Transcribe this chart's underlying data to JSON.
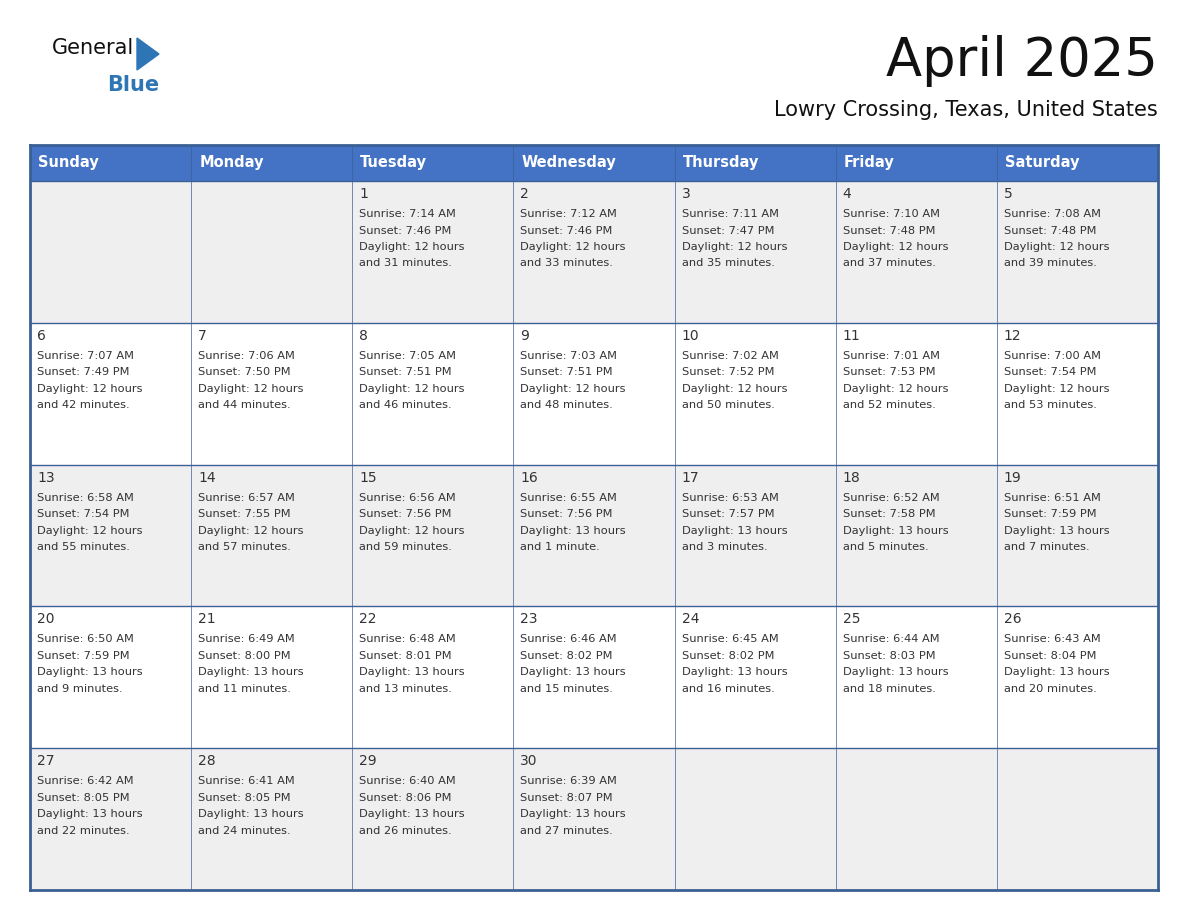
{
  "title": "April 2025",
  "subtitle": "Lowry Crossing, Texas, United States",
  "header_color": "#4472C4",
  "header_text_color": "#FFFFFF",
  "day_names": [
    "Sunday",
    "Monday",
    "Tuesday",
    "Wednesday",
    "Thursday",
    "Friday",
    "Saturday"
  ],
  "bg_color": "#FFFFFF",
  "cell_bg_even": "#EFEFEF",
  "cell_bg_odd": "#FFFFFF",
  "border_color": "#3A6094",
  "text_color": "#333333",
  "logo_black": "#111111",
  "logo_blue": "#2E75B6",
  "days": [
    {
      "day": 1,
      "col": 2,
      "row": 0,
      "sunrise": "7:14 AM",
      "sunset": "7:46 PM",
      "daylight": "12 hours",
      "daylight2": "and 31 minutes."
    },
    {
      "day": 2,
      "col": 3,
      "row": 0,
      "sunrise": "7:12 AM",
      "sunset": "7:46 PM",
      "daylight": "12 hours",
      "daylight2": "and 33 minutes."
    },
    {
      "day": 3,
      "col": 4,
      "row": 0,
      "sunrise": "7:11 AM",
      "sunset": "7:47 PM",
      "daylight": "12 hours",
      "daylight2": "and 35 minutes."
    },
    {
      "day": 4,
      "col": 5,
      "row": 0,
      "sunrise": "7:10 AM",
      "sunset": "7:48 PM",
      "daylight": "12 hours",
      "daylight2": "and 37 minutes."
    },
    {
      "day": 5,
      "col": 6,
      "row": 0,
      "sunrise": "7:08 AM",
      "sunset": "7:48 PM",
      "daylight": "12 hours",
      "daylight2": "and 39 minutes."
    },
    {
      "day": 6,
      "col": 0,
      "row": 1,
      "sunrise": "7:07 AM",
      "sunset": "7:49 PM",
      "daylight": "12 hours",
      "daylight2": "and 42 minutes."
    },
    {
      "day": 7,
      "col": 1,
      "row": 1,
      "sunrise": "7:06 AM",
      "sunset": "7:50 PM",
      "daylight": "12 hours",
      "daylight2": "and 44 minutes."
    },
    {
      "day": 8,
      "col": 2,
      "row": 1,
      "sunrise": "7:05 AM",
      "sunset": "7:51 PM",
      "daylight": "12 hours",
      "daylight2": "and 46 minutes."
    },
    {
      "day": 9,
      "col": 3,
      "row": 1,
      "sunrise": "7:03 AM",
      "sunset": "7:51 PM",
      "daylight": "12 hours",
      "daylight2": "and 48 minutes."
    },
    {
      "day": 10,
      "col": 4,
      "row": 1,
      "sunrise": "7:02 AM",
      "sunset": "7:52 PM",
      "daylight": "12 hours",
      "daylight2": "and 50 minutes."
    },
    {
      "day": 11,
      "col": 5,
      "row": 1,
      "sunrise": "7:01 AM",
      "sunset": "7:53 PM",
      "daylight": "12 hours",
      "daylight2": "and 52 minutes."
    },
    {
      "day": 12,
      "col": 6,
      "row": 1,
      "sunrise": "7:00 AM",
      "sunset": "7:54 PM",
      "daylight": "12 hours",
      "daylight2": "and 53 minutes."
    },
    {
      "day": 13,
      "col": 0,
      "row": 2,
      "sunrise": "6:58 AM",
      "sunset": "7:54 PM",
      "daylight": "12 hours",
      "daylight2": "and 55 minutes."
    },
    {
      "day": 14,
      "col": 1,
      "row": 2,
      "sunrise": "6:57 AM",
      "sunset": "7:55 PM",
      "daylight": "12 hours",
      "daylight2": "and 57 minutes."
    },
    {
      "day": 15,
      "col": 2,
      "row": 2,
      "sunrise": "6:56 AM",
      "sunset": "7:56 PM",
      "daylight": "12 hours",
      "daylight2": "and 59 minutes."
    },
    {
      "day": 16,
      "col": 3,
      "row": 2,
      "sunrise": "6:55 AM",
      "sunset": "7:56 PM",
      "daylight": "13 hours",
      "daylight2": "and 1 minute."
    },
    {
      "day": 17,
      "col": 4,
      "row": 2,
      "sunrise": "6:53 AM",
      "sunset": "7:57 PM",
      "daylight": "13 hours",
      "daylight2": "and 3 minutes."
    },
    {
      "day": 18,
      "col": 5,
      "row": 2,
      "sunrise": "6:52 AM",
      "sunset": "7:58 PM",
      "daylight": "13 hours",
      "daylight2": "and 5 minutes."
    },
    {
      "day": 19,
      "col": 6,
      "row": 2,
      "sunrise": "6:51 AM",
      "sunset": "7:59 PM",
      "daylight": "13 hours",
      "daylight2": "and 7 minutes."
    },
    {
      "day": 20,
      "col": 0,
      "row": 3,
      "sunrise": "6:50 AM",
      "sunset": "7:59 PM",
      "daylight": "13 hours",
      "daylight2": "and 9 minutes."
    },
    {
      "day": 21,
      "col": 1,
      "row": 3,
      "sunrise": "6:49 AM",
      "sunset": "8:00 PM",
      "daylight": "13 hours",
      "daylight2": "and 11 minutes."
    },
    {
      "day": 22,
      "col": 2,
      "row": 3,
      "sunrise": "6:48 AM",
      "sunset": "8:01 PM",
      "daylight": "13 hours",
      "daylight2": "and 13 minutes."
    },
    {
      "day": 23,
      "col": 3,
      "row": 3,
      "sunrise": "6:46 AM",
      "sunset": "8:02 PM",
      "daylight": "13 hours",
      "daylight2": "and 15 minutes."
    },
    {
      "day": 24,
      "col": 4,
      "row": 3,
      "sunrise": "6:45 AM",
      "sunset": "8:02 PM",
      "daylight": "13 hours",
      "daylight2": "and 16 minutes."
    },
    {
      "day": 25,
      "col": 5,
      "row": 3,
      "sunrise": "6:44 AM",
      "sunset": "8:03 PM",
      "daylight": "13 hours",
      "daylight2": "and 18 minutes."
    },
    {
      "day": 26,
      "col": 6,
      "row": 3,
      "sunrise": "6:43 AM",
      "sunset": "8:04 PM",
      "daylight": "13 hours",
      "daylight2": "and 20 minutes."
    },
    {
      "day": 27,
      "col": 0,
      "row": 4,
      "sunrise": "6:42 AM",
      "sunset": "8:05 PM",
      "daylight": "13 hours",
      "daylight2": "and 22 minutes."
    },
    {
      "day": 28,
      "col": 1,
      "row": 4,
      "sunrise": "6:41 AM",
      "sunset": "8:05 PM",
      "daylight": "13 hours",
      "daylight2": "and 24 minutes."
    },
    {
      "day": 29,
      "col": 2,
      "row": 4,
      "sunrise": "6:40 AM",
      "sunset": "8:06 PM",
      "daylight": "13 hours",
      "daylight2": "and 26 minutes."
    },
    {
      "day": 30,
      "col": 3,
      "row": 4,
      "sunrise": "6:39 AM",
      "sunset": "8:07 PM",
      "daylight": "13 hours",
      "daylight2": "and 27 minutes."
    }
  ]
}
